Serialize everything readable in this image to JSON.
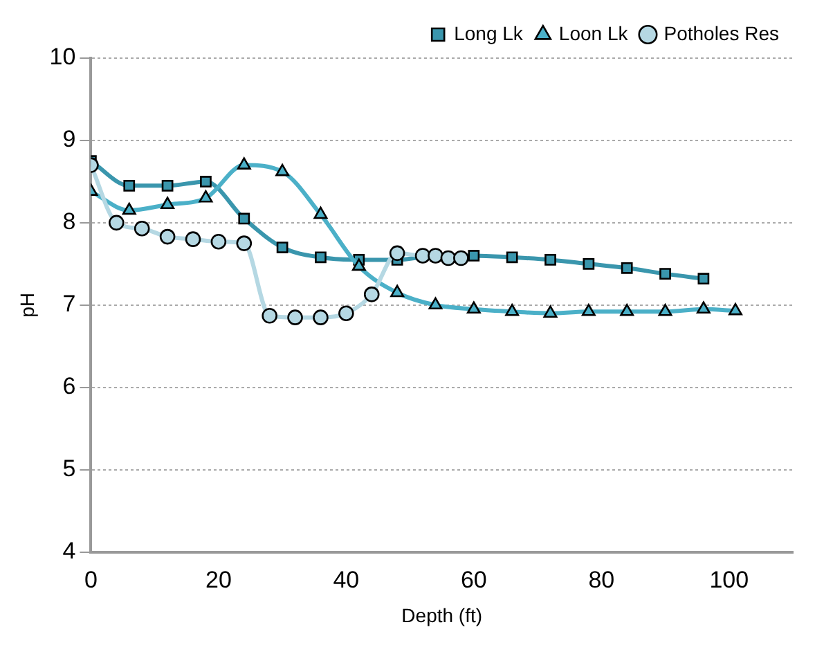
{
  "chart_data": {
    "type": "line",
    "xlabel": "Depth (ft)",
    "ylabel": "pH",
    "xlim": [
      0,
      110
    ],
    "xticks": [
      0,
      20,
      40,
      60,
      80,
      100
    ],
    "ylim": [
      4,
      10
    ],
    "yticks": [
      4,
      5,
      6,
      7,
      8,
      9,
      10
    ],
    "grid": "y",
    "legend": "top right",
    "series": [
      {
        "name": "Long Lk",
        "color": "#3a96ad",
        "marker": "square",
        "x": [
          0,
          6,
          12,
          18,
          24,
          30,
          36,
          42,
          48,
          54,
          60,
          66,
          72,
          78,
          84,
          90,
          96
        ],
        "values": [
          8.75,
          8.45,
          8.45,
          8.5,
          8.05,
          7.7,
          7.58,
          7.55,
          7.55,
          7.6,
          7.6,
          7.58,
          7.55,
          7.5,
          7.45,
          7.38,
          7.32
        ]
      },
      {
        "name": "Loon Lk",
        "color": "#4bb0c8",
        "marker": "triangle",
        "x": [
          0,
          6,
          12,
          18,
          24,
          30,
          36,
          42,
          48,
          54,
          60,
          66,
          72,
          78,
          84,
          90,
          96,
          101
        ],
        "values": [
          8.38,
          8.15,
          8.22,
          8.3,
          8.7,
          8.62,
          8.1,
          7.47,
          7.15,
          7.0,
          6.95,
          6.92,
          6.9,
          6.92,
          6.92,
          6.92,
          6.95,
          6.93
        ]
      },
      {
        "name": "Potholes Res",
        "color": "#b5d8e3",
        "marker": "circle",
        "x": [
          0,
          4,
          8,
          12,
          16,
          20,
          24,
          28,
          32,
          36,
          40,
          44,
          48,
          52,
          54,
          56,
          58
        ],
        "values": [
          8.7,
          8.0,
          7.93,
          7.83,
          7.8,
          7.77,
          7.75,
          6.87,
          6.85,
          6.85,
          6.9,
          7.13,
          7.63,
          7.6,
          7.6,
          7.57,
          7.57
        ]
      }
    ]
  }
}
